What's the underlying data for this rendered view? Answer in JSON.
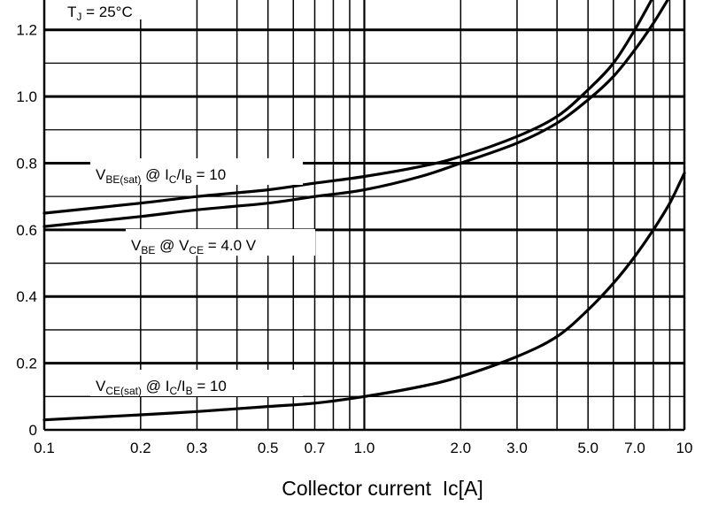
{
  "chart_data": {
    "type": "line",
    "title": "",
    "xlabel": "Collector current  Ic[A]",
    "ylabel": "",
    "xscale": "log",
    "xlim": [
      0.1,
      10
    ],
    "ylim": [
      0,
      1.3
    ],
    "grid": true,
    "condition_label": {
      "main": "T",
      "sub": "J",
      "tail": " = 25°C"
    },
    "yticks": [
      {
        "value": 0.0,
        "label": "0"
      },
      {
        "value": 0.2,
        "label": "0.2"
      },
      {
        "value": 0.4,
        "label": "0.4"
      },
      {
        "value": 0.6,
        "label": "0.6"
      },
      {
        "value": 0.8,
        "label": "0.8"
      },
      {
        "value": 1.0,
        "label": "1.0"
      },
      {
        "value": 1.2,
        "label": "1.2"
      }
    ],
    "xticks": [
      {
        "value": 0.1,
        "label": "0.1"
      },
      {
        "value": 0.2,
        "label": "0.2"
      },
      {
        "value": 0.3,
        "label": "0.3"
      },
      {
        "value": 0.5,
        "label": "0.5"
      },
      {
        "value": 0.7,
        "label": "0.7"
      },
      {
        "value": 1.0,
        "label": "1.0"
      },
      {
        "value": 2.0,
        "label": "2.0"
      },
      {
        "value": 3.0,
        "label": "3.0"
      },
      {
        "value": 5.0,
        "label": "5.0"
      },
      {
        "value": 7.0,
        "label": "7.0"
      },
      {
        "value": 10,
        "label": "10"
      }
    ],
    "series": [
      {
        "id": "vbe-sat",
        "label_parts": [
          [
            "V",
            false
          ],
          [
            "BE(sat)",
            true
          ],
          [
            " @ I",
            false
          ],
          [
            "C",
            true
          ],
          [
            "/I",
            false
          ],
          [
            "B",
            true
          ],
          [
            " = 10",
            false
          ]
        ],
        "x": [
          0.1,
          0.2,
          0.3,
          0.5,
          0.7,
          1.0,
          1.5,
          2.0,
          3.0,
          4.0,
          5.0,
          6.0,
          7.0,
          8.0
        ],
        "y": [
          0.65,
          0.68,
          0.7,
          0.72,
          0.74,
          0.76,
          0.79,
          0.82,
          0.88,
          0.94,
          1.02,
          1.1,
          1.2,
          1.3
        ]
      },
      {
        "id": "vbe",
        "label_parts": [
          [
            "V",
            false
          ],
          [
            "BE",
            true
          ],
          [
            " @ V",
            false
          ],
          [
            "CE",
            true
          ],
          [
            " = 4.0 V",
            false
          ]
        ],
        "x": [
          0.1,
          0.2,
          0.3,
          0.5,
          0.7,
          1.0,
          1.5,
          2.0,
          3.0,
          4.0,
          5.0,
          6.0,
          7.0,
          8.0,
          9.0
        ],
        "y": [
          0.61,
          0.64,
          0.66,
          0.68,
          0.7,
          0.72,
          0.76,
          0.8,
          0.86,
          0.92,
          0.99,
          1.06,
          1.14,
          1.22,
          1.3
        ]
      },
      {
        "id": "vce-sat",
        "label_parts": [
          [
            "V",
            false
          ],
          [
            "CE(sat)",
            true
          ],
          [
            " @ I",
            false
          ],
          [
            "C",
            true
          ],
          [
            "/I",
            false
          ],
          [
            "B",
            true
          ],
          [
            " = 10",
            false
          ]
        ],
        "x": [
          0.1,
          0.2,
          0.3,
          0.5,
          0.7,
          1.0,
          1.5,
          2.0,
          3.0,
          4.0,
          5.0,
          6.0,
          7.0,
          8.0,
          9.0,
          10
        ],
        "y": [
          0.03,
          0.045,
          0.055,
          0.07,
          0.08,
          0.1,
          0.13,
          0.16,
          0.22,
          0.28,
          0.36,
          0.44,
          0.52,
          0.6,
          0.68,
          0.77
        ]
      }
    ]
  }
}
